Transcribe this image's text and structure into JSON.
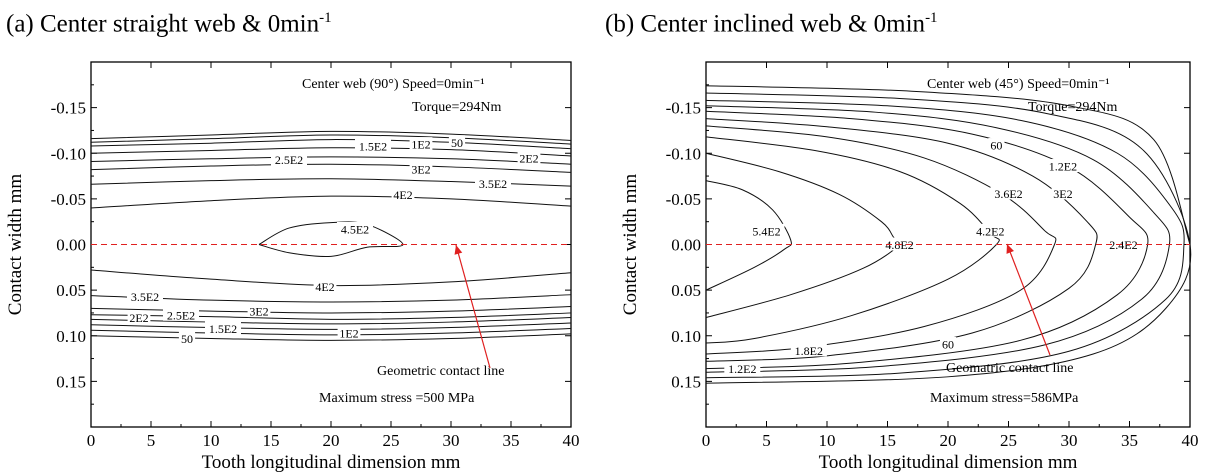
{
  "panels": [
    {
      "title": "(a) Center straight web & 0min",
      "title_sup": "-1",
      "annotation": {
        "line1": "Center web (90°) Speed=0min⁻¹",
        "line2": "Torque=294Nm",
        "max_stress": "Maximum stress =500 MPa",
        "contact_line": "Geometric contact line"
      }
    },
    {
      "title": "(b) Center inclined web & 0min",
      "title_sup": "-1",
      "annotation": {
        "line1": "Center web (45°) Speed=0min⁻¹",
        "line2": "Torque=294Nm",
        "max_stress": "Maximum stress=586MPa",
        "contact_line": "Geomatric contact line"
      }
    }
  ],
  "chart_data": [
    {
      "type": "contour",
      "title": "(a) Center straight web & 0min-1",
      "xlabel": "Tooth longitudinal dimension mm",
      "ylabel": "Contact width mm",
      "xlim": [
        0,
        40
      ],
      "ylim": [
        0.2,
        -0.2
      ],
      "x_ticks": [
        "0",
        "5",
        "10",
        "15",
        "20",
        "25",
        "30",
        "35",
        "40"
      ],
      "y_ticks": [
        "-0.15",
        "-0.10",
        "-0.05",
        "0.00",
        "0.05",
        "0.10",
        "0.15"
      ],
      "contact_line_y": 0.0,
      "contour_labels": [
        {
          "text": "50",
          "x": 30.5,
          "y": -0.112
        },
        {
          "text": "1E2",
          "x": 27.5,
          "y": -0.11
        },
        {
          "text": "1.5E2",
          "x": 23.5,
          "y": -0.108
        },
        {
          "text": "2E2",
          "x": 36.5,
          "y": -0.095
        },
        {
          "text": "2.5E2",
          "x": 16.5,
          "y": -0.093
        },
        {
          "text": "3E2",
          "x": 27.5,
          "y": -0.083
        },
        {
          "text": "3.5E2",
          "x": 33.5,
          "y": -0.067
        },
        {
          "text": "4E2",
          "x": 26,
          "y": -0.055
        },
        {
          "text": "4.5E2",
          "x": 22,
          "y": -0.017
        },
        {
          "text": "4E2",
          "x": 19.5,
          "y": 0.046
        },
        {
          "text": "3.5E2",
          "x": 4.5,
          "y": 0.057
        },
        {
          "text": "3E2",
          "x": 14,
          "y": 0.073
        },
        {
          "text": "2.5E2",
          "x": 7.5,
          "y": 0.077
        },
        {
          "text": "2E2",
          "x": 4,
          "y": 0.08
        },
        {
          "text": "1.5E2",
          "x": 11,
          "y": 0.092
        },
        {
          "text": "1E2",
          "x": 21.5,
          "y": 0.097
        },
        {
          "text": "50",
          "x": 8,
          "y": 0.103
        }
      ],
      "contours": [
        {
          "level": "50",
          "pts": [
            [
              0,
              -0.116
            ],
            [
              10,
              -0.12
            ],
            [
              20,
              -0.124
            ],
            [
              30,
              -0.121
            ],
            [
              40,
              -0.114
            ]
          ]
        },
        {
          "level": "1E2",
          "pts": [
            [
              0,
              -0.112
            ],
            [
              10,
              -0.116
            ],
            [
              20,
              -0.12
            ],
            [
              30,
              -0.117
            ],
            [
              40,
              -0.11
            ]
          ]
        },
        {
          "level": "1.5E2",
          "pts": [
            [
              0,
              -0.108
            ],
            [
              10,
              -0.111
            ],
            [
              20,
              -0.115
            ],
            [
              30,
              -0.112
            ],
            [
              40,
              -0.105
            ]
          ]
        },
        {
          "level": "2E2",
          "pts": [
            [
              0,
              -0.1
            ],
            [
              10,
              -0.103
            ],
            [
              20,
              -0.106
            ],
            [
              30,
              -0.104
            ],
            [
              40,
              -0.097
            ]
          ]
        },
        {
          "level": "2.5E2",
          "pts": [
            [
              0,
              -0.091
            ],
            [
              10,
              -0.094
            ],
            [
              20,
              -0.096
            ],
            [
              30,
              -0.094
            ],
            [
              40,
              -0.088
            ]
          ]
        },
        {
          "level": "3E2",
          "pts": [
            [
              0,
              -0.082
            ],
            [
              10,
              -0.086
            ],
            [
              20,
              -0.088
            ],
            [
              30,
              -0.085
            ],
            [
              40,
              -0.079
            ]
          ]
        },
        {
          "level": "3.5E2",
          "pts": [
            [
              0,
              -0.066
            ],
            [
              10,
              -0.07
            ],
            [
              20,
              -0.072
            ],
            [
              30,
              -0.069
            ],
            [
              40,
              -0.064
            ]
          ]
        },
        {
          "level": "4E2",
          "pts": [
            [
              0,
              -0.04
            ],
            [
              10,
              -0.048
            ],
            [
              20,
              -0.053
            ],
            [
              30,
              -0.05
            ],
            [
              40,
              -0.042
            ]
          ]
        },
        {
          "level": "4.5E2",
          "pts": [
            [
              14,
              0.0
            ],
            [
              16.5,
              -0.018
            ],
            [
              20,
              -0.024
            ],
            [
              23,
              -0.022
            ],
            [
              26,
              0.0
            ],
            [
              23,
              0.003
            ],
            [
              20,
              0.013
            ],
            [
              16.5,
              0.009
            ],
            [
              14,
              0.0
            ]
          ]
        },
        {
          "level": "4E2",
          "pts": [
            [
              0,
              0.028
            ],
            [
              10,
              0.038
            ],
            [
              20,
              0.045
            ],
            [
              30,
              0.041
            ],
            [
              40,
              0.031
            ]
          ]
        },
        {
          "level": "3.5E2",
          "pts": [
            [
              0,
              0.056
            ],
            [
              10,
              0.061
            ],
            [
              20,
              0.063
            ],
            [
              30,
              0.061
            ],
            [
              40,
              0.055
            ]
          ]
        },
        {
          "level": "3E2",
          "pts": [
            [
              0,
              0.07
            ],
            [
              10,
              0.073
            ],
            [
              20,
              0.075
            ],
            [
              30,
              0.073
            ],
            [
              40,
              0.068
            ]
          ]
        },
        {
          "level": "2.5E2",
          "pts": [
            [
              0,
              0.077
            ],
            [
              10,
              0.079
            ],
            [
              20,
              0.082
            ],
            [
              30,
              0.08
            ],
            [
              40,
              0.075
            ]
          ]
        },
        {
          "level": "2E2",
          "pts": [
            [
              0,
              0.082
            ],
            [
              10,
              0.085
            ],
            [
              20,
              0.087
            ],
            [
              30,
              0.085
            ],
            [
              40,
              0.08
            ]
          ]
        },
        {
          "level": "1.5E2",
          "pts": [
            [
              0,
              0.088
            ],
            [
              10,
              0.091
            ],
            [
              20,
              0.093
            ],
            [
              30,
              0.091
            ],
            [
              40,
              0.086
            ]
          ]
        },
        {
          "level": "1E2",
          "pts": [
            [
              0,
              0.094
            ],
            [
              10,
              0.097
            ],
            [
              20,
              0.099
            ],
            [
              30,
              0.097
            ],
            [
              40,
              0.092
            ]
          ]
        },
        {
          "level": "50",
          "pts": [
            [
              0,
              0.1
            ],
            [
              10,
              0.103
            ],
            [
              20,
              0.105
            ],
            [
              30,
              0.103
            ],
            [
              40,
              0.098
            ]
          ]
        }
      ]
    },
    {
      "type": "contour",
      "title": "(b) Center inclined web & 0min-1",
      "xlabel": "Tooth longitudinal dimension mm",
      "ylabel": "Contact width mm",
      "xlim": [
        0,
        40
      ],
      "ylim": [
        0.2,
        -0.2
      ],
      "x_ticks": [
        "0",
        "5",
        "10",
        "15",
        "20",
        "25",
        "30",
        "35",
        "40"
      ],
      "y_ticks": [
        "-0.15",
        "-0.10",
        "-0.05",
        "0.00",
        "0.05",
        "0.10",
        "0.15"
      ],
      "contact_line_y": 0.0,
      "contour_labels": [
        {
          "text": "60",
          "x": 24,
          "y": -0.109
        },
        {
          "text": "1.2E2",
          "x": 29.5,
          "y": -0.086
        },
        {
          "text": "3E2",
          "x": 29.5,
          "y": -0.056
        },
        {
          "text": "3.6E2",
          "x": 25,
          "y": -0.056
        },
        {
          "text": "5.4E2",
          "x": 5,
          "y": -0.015
        },
        {
          "text": "4.8E2",
          "x": 16,
          "y": 0.0
        },
        {
          "text": "4.2E2",
          "x": 23.5,
          "y": -0.015
        },
        {
          "text": "2.4E2",
          "x": 34.5,
          "y": 0.0
        },
        {
          "text": "60",
          "x": 20,
          "y": 0.109
        },
        {
          "text": "1.8E2",
          "x": 8.5,
          "y": 0.116
        },
        {
          "text": "1.2E2",
          "x": 3,
          "y": 0.136
        }
      ],
      "contours": [
        {
          "level": "5.4E2",
          "pts": [
            [
              0,
              -0.07
            ],
            [
              3,
              -0.06
            ],
            [
              5.5,
              -0.038
            ],
            [
              7,
              -0.005
            ],
            [
              6.5,
              0.005
            ],
            [
              4,
              0.025
            ],
            [
              0,
              0.05
            ]
          ]
        },
        {
          "level": "4.8E2",
          "pts": [
            [
              0,
              -0.1
            ],
            [
              6,
              -0.08
            ],
            [
              11,
              -0.055
            ],
            [
              14.5,
              -0.025
            ],
            [
              15.5,
              -0.008
            ],
            [
              16,
              0.0
            ],
            [
              13,
              0.026
            ],
            [
              7,
              0.055
            ],
            [
              0,
              0.08
            ]
          ]
        },
        {
          "level": "4.2E2",
          "pts": [
            [
              0,
              -0.118
            ],
            [
              9,
              -0.103
            ],
            [
              16,
              -0.08
            ],
            [
              21,
              -0.045
            ],
            [
              23.5,
              -0.012
            ],
            [
              24,
              0.0
            ],
            [
              20,
              0.038
            ],
            [
              12,
              0.078
            ],
            [
              4,
              0.103
            ],
            [
              0,
              0.108
            ]
          ]
        },
        {
          "level": "3.6E2",
          "pts": [
            [
              0,
              -0.13
            ],
            [
              10,
              -0.118
            ],
            [
              18,
              -0.095
            ],
            [
              24.5,
              -0.055
            ],
            [
              28,
              -0.015
            ],
            [
              28.8,
              0.0
            ],
            [
              26,
              0.05
            ],
            [
              18,
              0.09
            ],
            [
              8,
              0.113
            ],
            [
              0,
              0.12
            ]
          ]
        },
        {
          "level": "3E2",
          "pts": [
            [
              0,
              -0.138
            ],
            [
              10,
              -0.129
            ],
            [
              20,
              -0.111
            ],
            [
              27,
              -0.075
            ],
            [
              31.5,
              -0.025
            ],
            [
              32.2,
              0.0
            ],
            [
              30,
              0.048
            ],
            [
              22,
              0.097
            ],
            [
              10,
              0.122
            ],
            [
              0,
              0.128
            ]
          ]
        },
        {
          "level": "2.4E2",
          "pts": [
            [
              0,
              -0.146
            ],
            [
              12,
              -0.138
            ],
            [
              22,
              -0.121
            ],
            [
              30,
              -0.085
            ],
            [
              35,
              -0.03
            ],
            [
              36.5,
              0.0
            ],
            [
              34,
              0.055
            ],
            [
              26,
              0.105
            ],
            [
              12,
              0.13
            ],
            [
              0,
              0.136
            ]
          ]
        },
        {
          "level": "1.8E2",
          "pts": [
            [
              0,
              -0.152
            ],
            [
              14,
              -0.145
            ],
            [
              24,
              -0.128
            ],
            [
              32,
              -0.093
            ],
            [
              37,
              -0.035
            ],
            [
              38.3,
              0.0
            ],
            [
              36,
              0.06
            ],
            [
              28,
              0.11
            ],
            [
              14,
              0.134
            ],
            [
              0,
              0.14
            ]
          ]
        },
        {
          "level": "1.2E2",
          "pts": [
            [
              0,
              -0.158
            ],
            [
              15,
              -0.152
            ],
            [
              26,
              -0.136
            ],
            [
              34,
              -0.1
            ],
            [
              38.5,
              -0.04
            ],
            [
              39.5,
              0.0
            ],
            [
              38,
              0.06
            ],
            [
              30,
              0.117
            ],
            [
              16,
              0.141
            ],
            [
              0,
              0.146
            ]
          ]
        },
        {
          "level": "60",
          "pts": [
            [
              0,
              -0.166
            ],
            [
              16,
              -0.16
            ],
            [
              28,
              -0.144
            ],
            [
              36,
              -0.105
            ],
            [
              40,
              0.0
            ],
            [
              38,
              0.07
            ],
            [
              32,
              0.12
            ],
            [
              20,
              0.145
            ],
            [
              0,
              0.152
            ]
          ]
        },
        {
          "level": "60",
          "pts": [
            [
              0,
              -0.174
            ],
            [
              17,
              -0.168
            ],
            [
              30,
              -0.152
            ],
            [
              37,
              -0.115
            ],
            [
              40,
              0.0
            ]
          ]
        }
      ]
    }
  ]
}
